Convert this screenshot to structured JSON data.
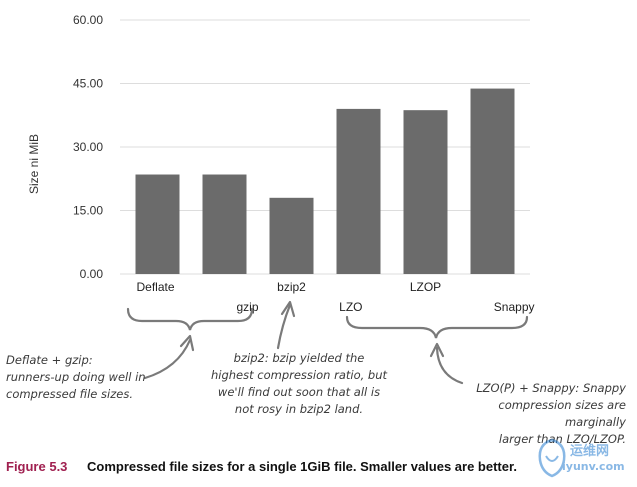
{
  "chart_data": {
    "type": "bar",
    "ylabel": "Size ni MiB",
    "ylim": [
      0,
      60
    ],
    "yticks": [
      "0.00",
      "15.00",
      "30.00",
      "45.00",
      "60.00"
    ],
    "grid": true,
    "categories": [
      "Deflate",
      "gzip",
      "bzip2",
      "LZO",
      "LZOP",
      "Snappy"
    ],
    "values": [
      23.5,
      23.5,
      18.0,
      39.0,
      38.7,
      43.8
    ],
    "bar_color": "#6b6b6b"
  },
  "annotations": {
    "deflate_gzip": [
      "Deflate + gzip:",
      "runners-up doing well in",
      "compressed file sizes."
    ],
    "bzip2": [
      "bzip2: bzip yielded the",
      "highest compression ratio, but",
      "we'll find out soon that all is",
      "not rosy in bzip2 land."
    ],
    "lzo_snappy": [
      "LZO(P) + Snappy: Snappy",
      "compression sizes are marginally",
      "larger than LZO/LZOP."
    ]
  },
  "caption": {
    "figure_number": "Figure 5.3",
    "text": "Compressed file sizes for a single 1GiB file. Smaller values are better."
  },
  "watermark": {
    "text": "运维网",
    "url": "iyunv.com"
  },
  "colors": {
    "caption_accent": "#a02050",
    "grid": "#dddddd",
    "annotation_stroke": "#7a7a7a"
  }
}
